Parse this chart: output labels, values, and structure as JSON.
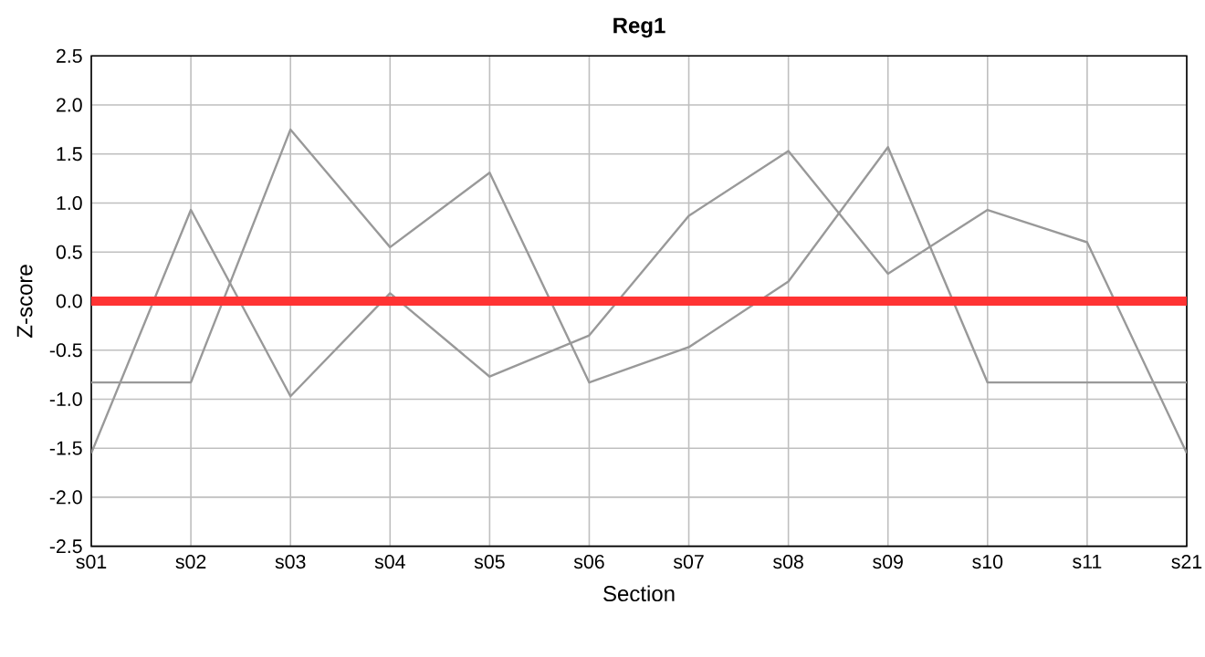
{
  "chart_data": {
    "type": "line",
    "title": "Reg1",
    "xlabel": "Section",
    "ylabel": "Z-score",
    "categories": [
      "s01",
      "s02",
      "s03",
      "s04",
      "s05",
      "s06",
      "s07",
      "s08",
      "s09",
      "s10",
      "s11",
      "s21"
    ],
    "series": [
      {
        "color": "#999999",
        "values": [
          -1.55,
          0.93,
          -0.97,
          0.08,
          -0.77,
          -0.35,
          0.87,
          1.53,
          0.28,
          0.93,
          0.6,
          -1.55
        ]
      },
      {
        "color": "#999999",
        "values": [
          -0.83,
          -0.83,
          1.75,
          0.55,
          1.31,
          -0.83,
          -0.47,
          0.2,
          1.57,
          -0.83,
          -0.83,
          -0.83
        ]
      }
    ],
    "ylim": [
      -2.5,
      2.5
    ],
    "yticks": [
      -2.5,
      {
        "value": -2,
        "label": "-2.0"
      },
      -1.5,
      {
        "value": -1,
        "label": "-1.0"
      },
      -0.5,
      {
        "value": 0,
        "label": "0.0"
      },
      0.5,
      {
        "value": 1,
        "label": "1.0"
      },
      1.5,
      {
        "value": 2,
        "label": "2.0"
      },
      2.5
    ],
    "ref_lines": [
      {
        "axis": "y",
        "value": 0,
        "color": "#ff3333"
      }
    ],
    "grid": true,
    "legend": false,
    "marker": "none",
    "line_style": "solid"
  }
}
